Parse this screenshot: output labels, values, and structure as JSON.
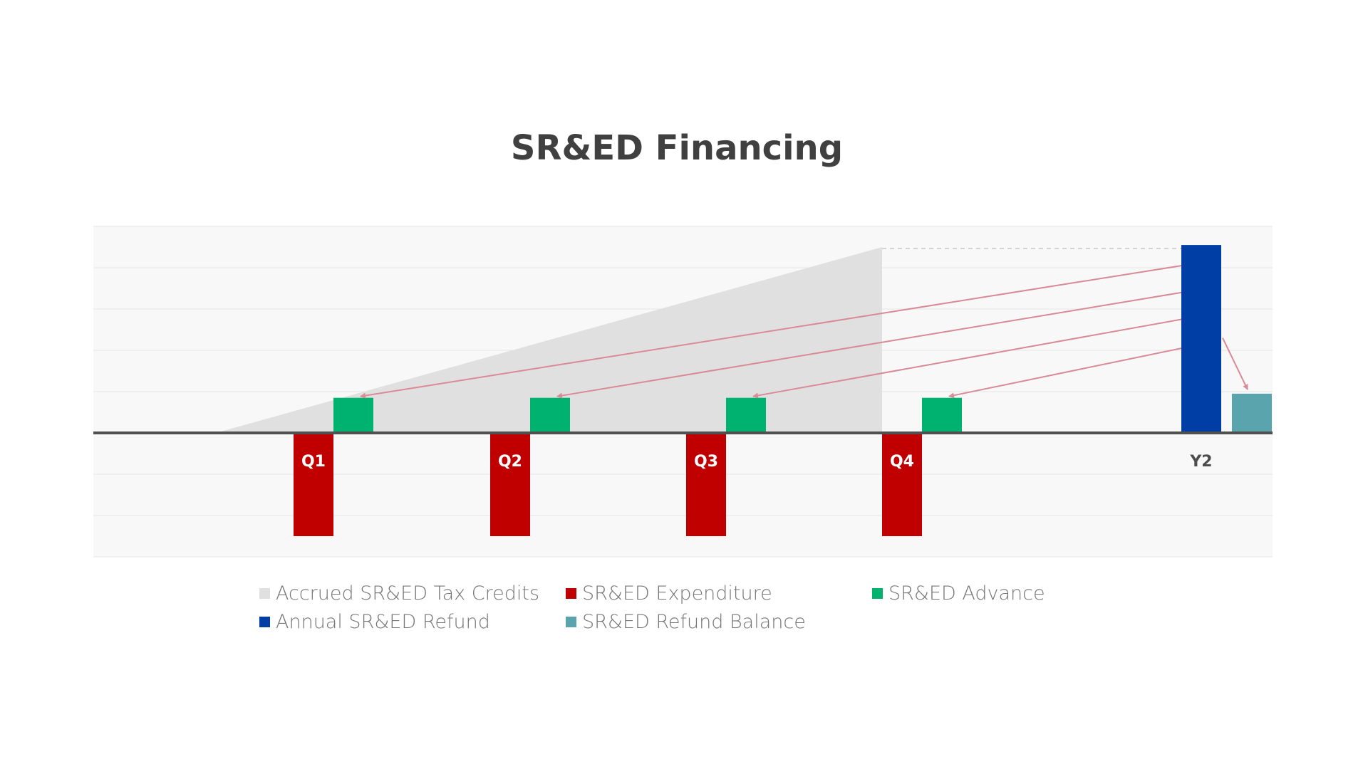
{
  "chart_data": {
    "type": "bar",
    "title": "SR&ED Financing",
    "xlabel": "",
    "ylabel": "",
    "categories": [
      "Q1",
      "Q2",
      "Q3",
      "Q4",
      "Y2"
    ],
    "ylim": [
      -3,
      5
    ],
    "grid": true,
    "legend_position": "bottom",
    "series": [
      {
        "name": "Accrued SR&ED Tax Credits",
        "kind": "area",
        "color": "#e0e0e0",
        "points": [
          [
            -0.6,
            0
          ],
          [
            2.8,
            4.5
          ]
        ]
      },
      {
        "name": "SR&ED Expenditure",
        "kind": "bar",
        "color": "#c00000",
        "values": [
          -2.5,
          -2.5,
          -2.5,
          -2.5,
          null
        ]
      },
      {
        "name": "SR&ED Advance",
        "kind": "bar",
        "color": "#00b26f",
        "values": [
          0.85,
          0.85,
          0.85,
          0.85,
          null
        ]
      },
      {
        "name": "Annual SR&ED Refund",
        "kind": "bar",
        "color": "#003da5",
        "values": [
          null,
          null,
          null,
          null,
          4.55
        ]
      },
      {
        "name": "SR&ED Refund Balance",
        "kind": "bar",
        "color": "#5aa4ae",
        "values": [
          null,
          null,
          null,
          null,
          0.95
        ]
      }
    ],
    "tick_label_colors": {
      "quarter": "#ffffff",
      "year": "#4d4d4d"
    },
    "arrow_color": "#d88a96",
    "plot_background": "#f8f8f8",
    "gridline_color": "#e6e6e6",
    "baseline_color": "#505050"
  }
}
